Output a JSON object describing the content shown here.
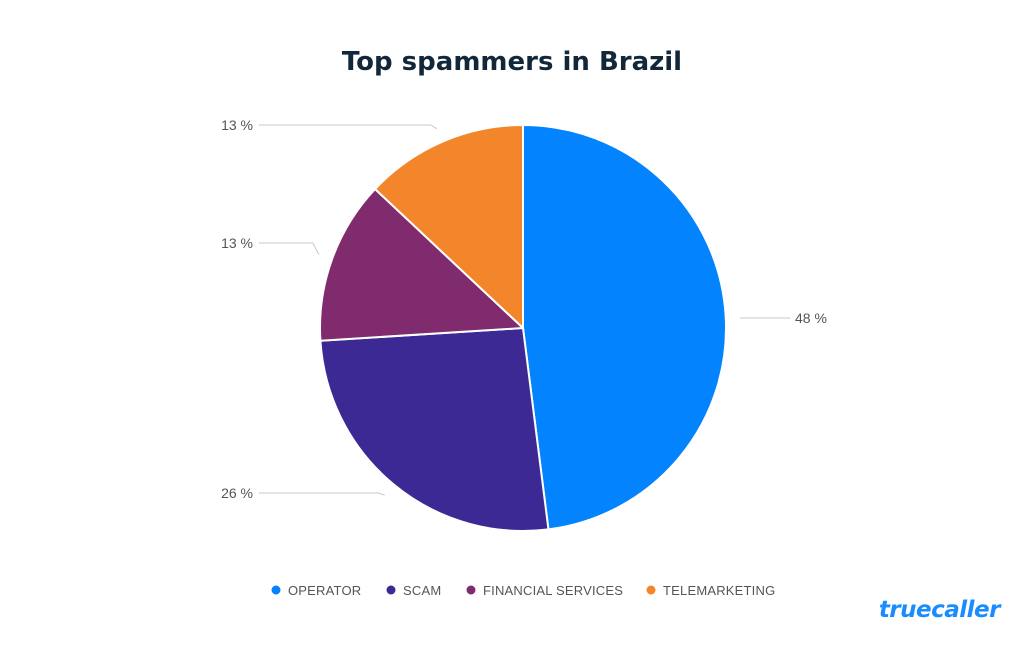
{
  "brand": {
    "logo_text": "truecaller",
    "color": "#1a8cff"
  },
  "chart_data": {
    "type": "pie",
    "title": "Top spammers in Brazil",
    "categories": [
      "OPERATOR",
      "SCAM",
      "FINANCIAL SERVICES",
      "TELEMARKETING"
    ],
    "values": [
      48,
      26,
      13,
      13
    ],
    "value_labels": [
      "48 %",
      "26 %",
      "13 %",
      "13 %"
    ],
    "colors": [
      "#0384fe",
      "#3d2994",
      "#7f2b6d",
      "#f3852b"
    ],
    "start_angle": "12 o'clock",
    "direction": "clockwise",
    "legend": "bottom-center",
    "label_style": "leader lines to outside labels"
  }
}
